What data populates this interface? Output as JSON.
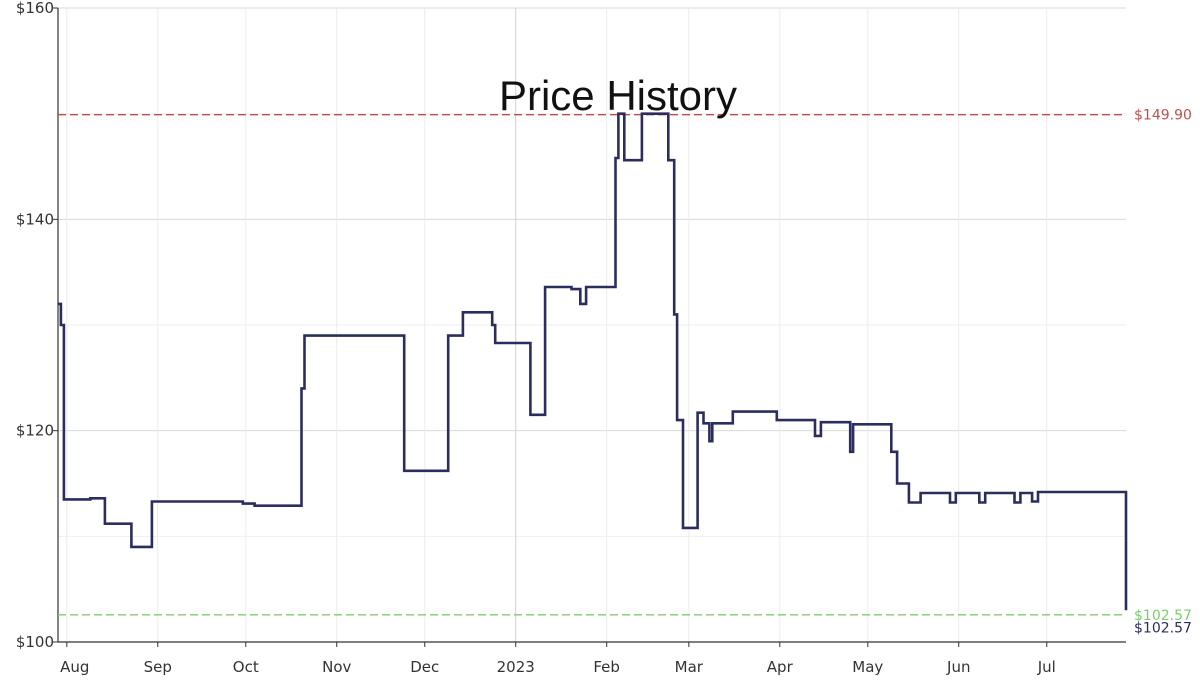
{
  "chart_data": {
    "type": "line",
    "title": "Price History",
    "y_ticks": [
      "$100",
      "$120",
      "$140",
      "$160"
    ],
    "y_tick_values": [
      100,
      120,
      140,
      160
    ],
    "ylim": [
      100,
      160
    ],
    "x_ticks": [
      "Aug",
      "Sep",
      "Oct",
      "Nov",
      "Dec",
      "2023",
      "Feb",
      "Mar",
      "Apr",
      "May",
      "Jun",
      "Jul"
    ],
    "x_tick_dates": [
      "2022-08-01",
      "2022-09-01",
      "2022-10-01",
      "2022-11-01",
      "2022-12-01",
      "2023-01-01",
      "2023-02-01",
      "2023-03-01",
      "2023-04-01",
      "2023-05-01",
      "2023-06-01",
      "2023-07-01"
    ],
    "xlim": [
      "2022-07-29",
      "2023-07-28"
    ],
    "grid": true,
    "reference_lines": [
      {
        "label": "$149.90",
        "value": 149.9,
        "color": "#c0504d"
      },
      {
        "label": "$102.57",
        "value": 102.57,
        "color": "#7ccd6e"
      }
    ],
    "current_label": "$102.57",
    "line_color": "#2b2d5e",
    "series": [
      {
        "step": true,
        "points": [
          [
            "2022-07-29",
            132.0
          ],
          [
            "2022-07-30",
            130.0
          ],
          [
            "2022-07-31",
            113.5
          ],
          [
            "2022-08-09",
            113.6
          ],
          [
            "2022-08-14",
            111.2
          ],
          [
            "2022-08-23",
            109.0
          ],
          [
            "2022-08-30",
            113.3
          ],
          [
            "2022-09-30",
            113.1
          ],
          [
            "2022-10-04",
            112.9
          ],
          [
            "2022-10-20",
            124.0
          ],
          [
            "2022-10-21",
            129.0
          ],
          [
            "2022-11-24",
            116.2
          ],
          [
            "2022-12-09",
            129.0
          ],
          [
            "2022-12-14",
            131.2
          ],
          [
            "2022-12-24",
            130.0
          ],
          [
            "2022-12-25",
            128.3
          ],
          [
            "2023-01-06",
            121.5
          ],
          [
            "2023-01-11",
            133.6
          ],
          [
            "2023-01-20",
            133.4
          ],
          [
            "2023-01-23",
            132.0
          ],
          [
            "2023-01-25",
            133.6
          ],
          [
            "2023-02-04",
            145.8
          ],
          [
            "2023-02-05",
            150.0
          ],
          [
            "2023-02-07",
            145.6
          ],
          [
            "2023-02-13",
            150.0
          ],
          [
            "2023-02-22",
            145.6
          ],
          [
            "2023-02-24",
            131.0
          ],
          [
            "2023-02-25",
            121.0
          ],
          [
            "2023-02-27",
            110.8
          ],
          [
            "2023-03-04",
            121.7
          ],
          [
            "2023-03-06",
            120.7
          ],
          [
            "2023-03-08",
            119.0
          ],
          [
            "2023-03-09",
            120.7
          ],
          [
            "2023-03-16",
            121.8
          ],
          [
            "2023-03-31",
            121.0
          ],
          [
            "2023-04-13",
            119.5
          ],
          [
            "2023-04-15",
            120.8
          ],
          [
            "2023-04-25",
            118.0
          ],
          [
            "2023-04-26",
            120.6
          ],
          [
            "2023-05-09",
            118.0
          ],
          [
            "2023-05-11",
            115.0
          ],
          [
            "2023-05-15",
            113.2
          ],
          [
            "2023-05-19",
            114.1
          ],
          [
            "2023-05-29",
            113.2
          ],
          [
            "2023-05-31",
            114.1
          ],
          [
            "2023-06-08",
            113.2
          ],
          [
            "2023-06-10",
            114.1
          ],
          [
            "2023-06-20",
            113.2
          ],
          [
            "2023-06-22",
            114.1
          ],
          [
            "2023-06-26",
            113.3
          ],
          [
            "2023-06-28",
            114.2
          ],
          [
            "2023-07-28",
            103.0
          ]
        ]
      }
    ]
  }
}
